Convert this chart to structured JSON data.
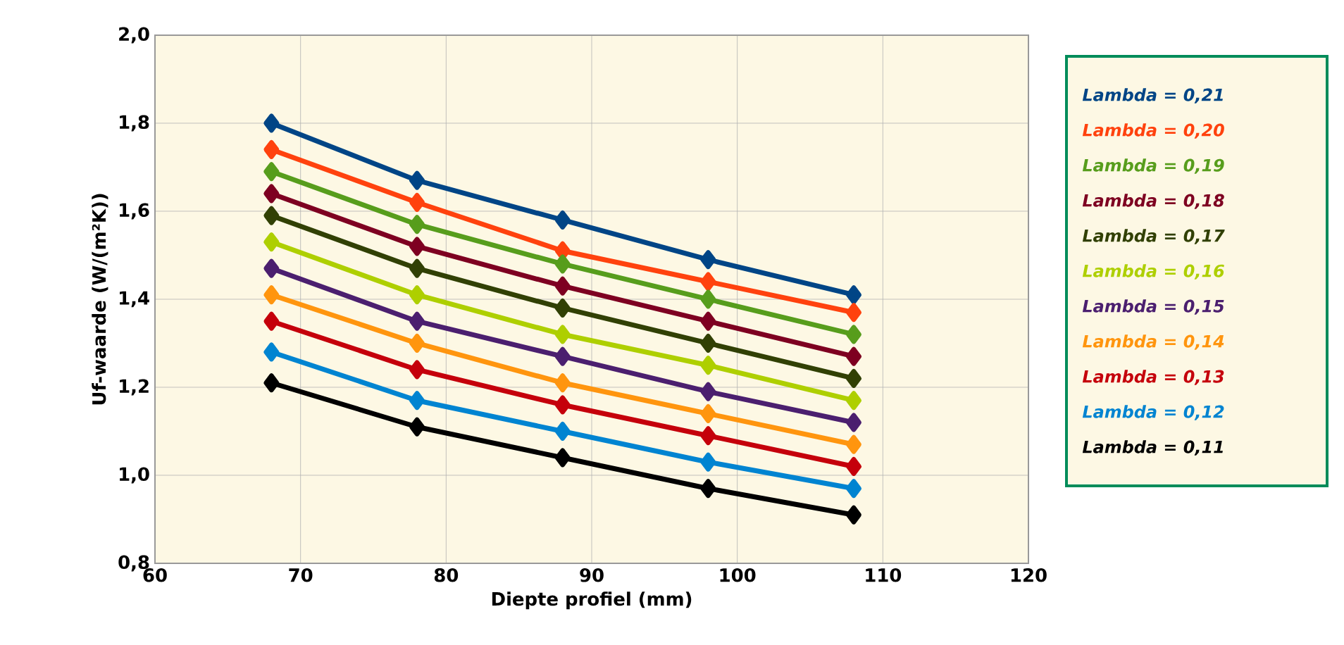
{
  "chart_data": {
    "type": "line",
    "xlabel": "Diepte profiel (mm)",
    "ylabel": "Uf-waarde (W/(m²K))",
    "x": [
      68,
      78,
      88,
      98,
      108
    ],
    "xlim": [
      60,
      120
    ],
    "xticks": [
      60,
      70,
      80,
      90,
      100,
      110,
      120
    ],
    "ylim": [
      0.8,
      2.0
    ],
    "yticks": [
      {
        "value": 0.8,
        "label": "0,8"
      },
      {
        "value": 1.0,
        "label": "1,0"
      },
      {
        "value": 1.2,
        "label": "1,2"
      },
      {
        "value": 1.4,
        "label": "1,4"
      },
      {
        "value": 1.6,
        "label": "1,6"
      },
      {
        "value": 1.8,
        "label": "1,8"
      },
      {
        "value": 2.0,
        "label": "2,0"
      }
    ],
    "grid": true,
    "legend": "right",
    "marker": "diamond",
    "line_style": "solid",
    "series": [
      {
        "name": "Lambda = 0,21",
        "color": "#004586",
        "values": [
          1.8,
          1.67,
          1.58,
          1.49,
          1.41
        ]
      },
      {
        "name": "Lambda = 0,20",
        "color": "#ff420e",
        "values": [
          1.74,
          1.62,
          1.51,
          1.44,
          1.37
        ]
      },
      {
        "name": "Lambda = 0,19",
        "color": "#579d1c",
        "values": [
          1.69,
          1.57,
          1.48,
          1.4,
          1.32
        ]
      },
      {
        "name": "Lambda = 0,18",
        "color": "#7e0021",
        "values": [
          1.64,
          1.52,
          1.43,
          1.35,
          1.27
        ]
      },
      {
        "name": "Lambda = 0,17",
        "color": "#314004",
        "values": [
          1.59,
          1.47,
          1.38,
          1.3,
          1.22
        ]
      },
      {
        "name": "Lambda = 0,16",
        "color": "#aecf00",
        "values": [
          1.53,
          1.41,
          1.32,
          1.25,
          1.17
        ]
      },
      {
        "name": "Lambda = 0,15",
        "color": "#4b1f6f",
        "values": [
          1.47,
          1.35,
          1.27,
          1.19,
          1.12
        ]
      },
      {
        "name": "Lambda = 0,14",
        "color": "#ff950e",
        "values": [
          1.41,
          1.3,
          1.21,
          1.14,
          1.07
        ]
      },
      {
        "name": "Lambda = 0,13",
        "color": "#c5000b",
        "values": [
          1.35,
          1.24,
          1.16,
          1.09,
          1.02
        ]
      },
      {
        "name": "Lambda = 0,12",
        "color": "#0084d1",
        "values": [
          1.28,
          1.17,
          1.1,
          1.03,
          0.97
        ]
      },
      {
        "name": "Lambda = 0,11",
        "color": "#000000",
        "values": [
          1.21,
          1.11,
          1.04,
          0.97,
          0.91
        ]
      }
    ]
  }
}
